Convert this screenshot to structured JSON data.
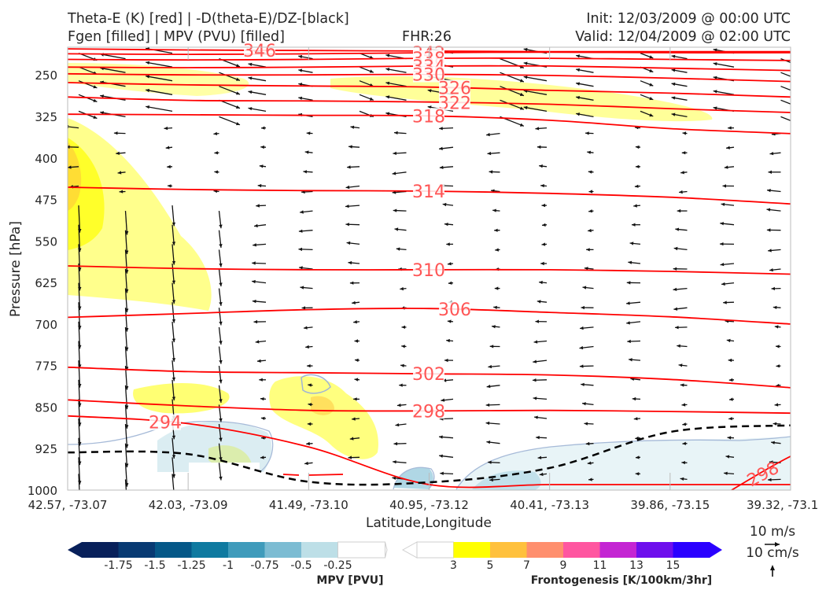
{
  "header": {
    "line1_left": "Theta-E (K) [red] | -D(theta-E)/DZ-[black]",
    "line2_left": "Fgen [filled] | MPV (PVU) [filled]",
    "fhr": "FHR:26",
    "init": "Init: 12/03/2009 @ 00:00 UTC",
    "valid": "Valid: 12/04/2009 @ 02:00 UTC"
  },
  "chart_data": {
    "type": "cross-section",
    "xlabel": "Latitude,Longitude",
    "ylabel": "Pressure [hPa]",
    "x_ticks": [
      "42.57, -73.07",
      "42.03, -73.09",
      "41.49, -73.10",
      "40.95, -73.12",
      "40.41, -73.13",
      "39.86, -73.15",
      "39.32, -73.1"
    ],
    "y_ticks": [
      250,
      325,
      400,
      475,
      550,
      625,
      700,
      775,
      850,
      925,
      1000
    ],
    "ylim": [
      1000,
      200
    ],
    "theta_e_color": "#ff0000",
    "theta_e_label_color": "#ff5555",
    "theta_e_contours": [
      {
        "value": 346,
        "label": "346",
        "p": [
          203,
          205,
          206,
          207,
          208,
          208,
          208
        ]
      },
      {
        "value": 342,
        "label": "342",
        "p": [
          212,
          213,
          212,
          210,
          209,
          210,
          210
        ]
      },
      {
        "value": 338,
        "label": "338",
        "p": [
          222,
          223,
          222,
          220,
          220,
          222,
          224
        ]
      },
      {
        "value": 334,
        "label": "334",
        "p": [
          236,
          237,
          236,
          234,
          234,
          238,
          242
        ]
      },
      {
        "value": 330,
        "label": "330",
        "p": [
          248,
          250,
          250,
          249,
          251,
          256,
          262
        ]
      },
      {
        "value": 326,
        "label": "326",
        "p": [
          264,
          268,
          270,
          272,
          278,
          283,
          290
        ]
      },
      {
        "value": 322,
        "label": "322",
        "p": [
          290,
          296,
          297,
          299,
          303,
          311,
          318
        ]
      },
      {
        "value": 318,
        "label": "318",
        "p": [
          321,
          322,
          323,
          324,
          332,
          347,
          356
        ]
      },
      {
        "value": 314,
        "label": "314",
        "p": [
          453,
          457,
          459,
          460,
          464,
          471,
          483
        ]
      },
      {
        "value": 310,
        "label": "310",
        "p": [
          595,
          600,
          602,
          602,
          602,
          605,
          610
        ]
      },
      {
        "value": 306,
        "label": "306",
        "p": [
          688,
          681,
          674,
          672,
          679,
          687,
          700
        ]
      },
      {
        "value": 302,
        "label": "302",
        "p": [
          778,
          786,
          788,
          790,
          792,
          800,
          815
        ]
      },
      {
        "value": 298,
        "label": "298",
        "p": [
          837,
          848,
          856,
          857,
          856,
          858,
          861
        ]
      },
      {
        "value": 294,
        "label": "294",
        "p": [
          866,
          880,
          922,
          990,
          990,
          990,
          990
        ]
      }
    ],
    "theta_e_label_298_lower": "298",
    "dthetae_dz_zero_line": {
      "color": "#000000",
      "p": [
        932,
        935,
        985,
        986,
        960,
        895,
        883
      ]
    },
    "fgen_levels": [
      3,
      5,
      7,
      9,
      11,
      13,
      15
    ],
    "fgen_colors": [
      "#ffff00",
      "#ffc13d",
      "#ff8f6e",
      "#ff56a0",
      "#c425d3",
      "#6e0fed",
      "#2a00ff"
    ],
    "fgen_label": "Frontogenesis [K/100km/3hr]",
    "mpv_levels": [
      -1.75,
      -1.5,
      -1.25,
      -1.0,
      -0.75,
      -0.5,
      -0.25
    ],
    "mpv_colors": [
      "#08205a",
      "#083a73",
      "#055888",
      "#0f7aa0",
      "#3f9bbb",
      "#7cbcd3",
      "#bddfe7"
    ],
    "mpv_label": "MPV [PVU]",
    "wind_key_top": "10 m/s",
    "wind_key_bottom": "10 cm/s"
  }
}
